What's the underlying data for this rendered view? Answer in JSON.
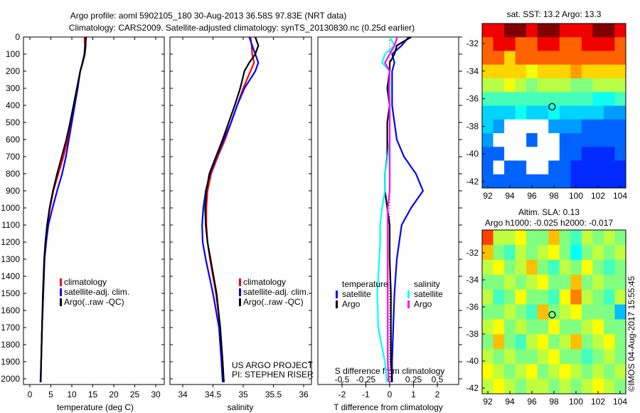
{
  "chart_data": [
    {
      "type": "line",
      "title": "Argo profile: aoml 5902105_180 30-Aug-2013 36.58S 97.83E (NRT data)",
      "subtitle": "Climatology: CARS2009. Satellite-adjusted climatology: synTS_20130830.nc (0.25d earlier)",
      "xlabel": "temperature (deg C)",
      "xlim": [
        -1,
        31
      ],
      "ylim": [
        0,
        2050
      ],
      "xticks": [
        "0",
        "5",
        "10",
        "15",
        "20",
        "25",
        "30"
      ],
      "yticks": [
        "0",
        "100",
        "200",
        "300",
        "400",
        "500",
        "600",
        "700",
        "800",
        "900",
        "1000",
        "1100",
        "1200",
        "1300",
        "1400",
        "1500",
        "1600",
        "1700",
        "1800",
        "1900",
        "2000"
      ],
      "depth": [
        0,
        50,
        100,
        150,
        200,
        300,
        400,
        500,
        600,
        700,
        800,
        900,
        1000,
        1100,
        1200,
        1300,
        1500,
        1700,
        1900,
        2020
      ],
      "series": [
        {
          "name": "climatology",
          "color": "#ff0000",
          "values": [
            13.0,
            13.1,
            13.0,
            12.5,
            12.0,
            11.3,
            10.5,
            9.8,
            9.0,
            8.0,
            6.8,
            5.6,
            4.8,
            4.2,
            3.8,
            3.5,
            3.2,
            2.9,
            2.7,
            2.6
          ]
        },
        {
          "name": "satellite-adj. clim.",
          "color": "#0000ff",
          "values": [
            13.3,
            13.3,
            13.1,
            12.6,
            12.0,
            11.4,
            10.7,
            10.0,
            9.3,
            8.6,
            7.7,
            6.5,
            5.4,
            4.4,
            3.9,
            3.5,
            3.2,
            2.9,
            2.7,
            2.5
          ]
        },
        {
          "name": "Argo(..raw -QC)",
          "color": "#000000",
          "values": [
            13.4,
            13.2,
            13.0,
            12.6,
            12.0,
            11.2,
            10.4,
            9.6,
            8.7,
            7.6,
            6.5,
            5.5,
            4.7,
            4.1,
            3.7,
            3.4,
            3.1,
            2.9,
            2.7,
            2.6
          ]
        }
      ]
    },
    {
      "type": "line",
      "xlabel": "salinity",
      "xlim": [
        33.8,
        36.1
      ],
      "ylim": [
        0,
        2050
      ],
      "xticks": [
        "34",
        "34.5",
        "35",
        "35.5",
        "36"
      ],
      "depth": [
        0,
        50,
        100,
        150,
        200,
        300,
        400,
        500,
        600,
        700,
        800,
        900,
        1000,
        1100,
        1200,
        1300,
        1500,
        1700,
        1900,
        2020
      ],
      "series": [
        {
          "name": "climatology",
          "color": "#ff0000",
          "values": [
            35.12,
            35.14,
            35.15,
            35.18,
            35.12,
            35.0,
            34.9,
            34.8,
            34.7,
            34.58,
            34.47,
            34.41,
            34.39,
            34.39,
            34.41,
            34.45,
            34.55,
            34.62,
            34.66,
            34.68
          ]
        },
        {
          "name": "satellite-adj. clim.",
          "color": "#0000ff",
          "values": [
            35.1,
            35.15,
            35.2,
            35.25,
            35.2,
            35.02,
            34.9,
            34.8,
            34.68,
            34.56,
            34.45,
            34.38,
            34.34,
            34.32,
            34.33,
            34.38,
            34.5,
            34.6,
            34.64,
            34.66
          ]
        },
        {
          "name": "Argo(..raw -QC)",
          "color": "#000000",
          "values": [
            35.2,
            35.25,
            35.2,
            35.1,
            35.02,
            34.95,
            34.86,
            34.76,
            34.66,
            34.55,
            34.44,
            34.39,
            34.37,
            34.38,
            34.41,
            34.46,
            34.56,
            34.62,
            34.66,
            34.68
          ]
        }
      ],
      "annotation": [
        "US ARGO PROJECT",
        "PI: STEPHEN RISER"
      ]
    },
    {
      "type": "line",
      "xlabel": "T difference from climatology",
      "x2label": "S difference from climatology",
      "xlim": [
        -3,
        3
      ],
      "x2lim": [
        -0.75,
        0.75
      ],
      "xticks": [
        "-2",
        "-1",
        "0",
        "1",
        "2"
      ],
      "x2ticks": [
        "-0.5",
        "-0.25",
        "0",
        "0.25",
        "0.5"
      ],
      "depth": [
        0,
        50,
        100,
        150,
        200,
        300,
        400,
        500,
        600,
        700,
        800,
        900,
        1000,
        1100,
        1200,
        1300,
        1500,
        1700,
        1900,
        2020
      ],
      "legend": {
        "temperature_title": "temperature",
        "salinity_title": "salinity"
      },
      "series": [
        {
          "name": "satellite",
          "group": "temperature",
          "axis": "T",
          "color": "#0000ff",
          "values": [
            0.8,
            0.5,
            0.1,
            0.2,
            0.1,
            0.1,
            0.1,
            0.2,
            0.3,
            0.6,
            1.1,
            1.4,
            0.9,
            0.5,
            0.4,
            0.3,
            0.2,
            0.15,
            0.1,
            0.1
          ]
        },
        {
          "name": "Argo",
          "group": "temperature",
          "axis": "T",
          "color": "#000000",
          "values": [
            0.9,
            0.3,
            0.2,
            0.0,
            0.0,
            -0.1,
            0.0,
            -0.1,
            -0.1,
            -0.1,
            -0.2,
            -0.2,
            -0.1,
            0.0,
            0.0,
            0.0,
            0.05,
            0.05,
            0.05,
            0.1
          ]
        },
        {
          "name": "satellite",
          "group": "salinity",
          "axis": "S",
          "color": "#00ffff",
          "values": [
            0.0,
            0.05,
            -0.05,
            -0.08,
            0.0,
            0.0,
            0.0,
            0.0,
            0.0,
            -0.02,
            -0.05,
            -0.05,
            -0.08,
            -0.1,
            -0.1,
            -0.11,
            -0.13,
            -0.12,
            -0.05,
            -0.03
          ]
        },
        {
          "name": "Argo",
          "group": "salinity",
          "axis": "S",
          "color": "#ff00ff",
          "values": [
            0.08,
            0.05,
            0.0,
            -0.05,
            0.0,
            -0.01,
            0.0,
            0.0,
            0.0,
            0.0,
            0.0,
            0.0,
            -0.02,
            -0.02,
            -0.02,
            -0.02,
            -0.02,
            -0.02,
            -0.02,
            -0.01
          ]
        }
      ]
    },
    {
      "type": "heatmap",
      "title": "sat. SST: 13.2 Argo: 13.3",
      "xticks": [
        "92",
        "94",
        "96",
        "98",
        "100",
        "102",
        "104"
      ],
      "yticks": [
        "-32",
        "-34",
        "-36",
        "-38",
        "-40",
        "-42"
      ],
      "xlim": [
        91.5,
        104.5
      ],
      "ylim": [
        -43,
        -30.9
      ],
      "point": [
        97.83,
        -36.58
      ],
      "clim": [
        9,
        18
      ],
      "grid": [
        [
          17,
          17,
          18,
          18,
          17,
          18,
          18,
          17,
          17,
          17,
          18,
          18,
          17
        ],
        [
          16,
          17,
          17,
          16,
          16,
          17,
          17,
          16,
          16,
          17,
          17,
          17,
          16
        ],
        [
          16,
          16,
          15,
          16,
          16,
          16,
          16,
          16,
          16,
          16,
          16,
          16,
          16
        ],
        [
          15,
          15,
          15,
          15,
          14.5,
          15,
          15,
          15,
          15.5,
          15,
          15,
          15,
          15
        ],
        [
          14,
          14,
          14.5,
          14,
          13.5,
          14,
          14,
          14,
          13.5,
          13.5,
          14,
          14,
          14
        ],
        [
          13,
          13,
          13,
          13,
          13,
          13,
          13,
          13,
          13,
          13,
          12.5,
          12.5,
          13
        ],
        [
          12,
          12,
          12,
          12.5,
          12,
          12,
          12.5,
          12,
          12,
          12,
          12,
          11.5,
          11.5
        ],
        [
          12,
          11.5,
          null,
          null,
          null,
          null,
          11.5,
          11.5,
          11.5,
          11,
          11,
          11,
          11
        ],
        [
          11.5,
          null,
          null,
          null,
          11,
          null,
          null,
          11,
          11,
          11,
          11,
          11,
          11
        ],
        [
          11,
          11,
          null,
          null,
          null,
          null,
          null,
          11,
          11,
          10.5,
          10.5,
          10.5,
          11
        ],
        [
          11,
          null,
          11,
          11,
          null,
          null,
          11,
          11,
          10.5,
          10.5,
          10.5,
          10.5,
          10.5
        ],
        [
          11,
          11,
          11,
          11,
          11,
          11,
          11,
          11,
          10.5,
          10.5,
          10.5,
          10.5,
          10.5
        ]
      ]
    },
    {
      "type": "heatmap",
      "title": "Altim. SLA: 0.13",
      "subtitle": "Argo h1000: -0.025 h2000: -0.017",
      "xticks": [
        "92",
        "94",
        "96",
        "98",
        "100",
        "102",
        "104"
      ],
      "yticks": [
        "-32",
        "-34",
        "-36",
        "-38",
        "-40",
        "-42"
      ],
      "xlim": [
        91.5,
        104.5
      ],
      "ylim": [
        -43,
        -30.9
      ],
      "point": [
        97.83,
        -36.58
      ],
      "clim": [
        -0.4,
        0.4
      ],
      "grid": [
        [
          0.25,
          0.05,
          0.05,
          0.1,
          0.0,
          0.0,
          0.15,
          0.0,
          -0.05,
          0.05,
          0.0,
          0.05,
          0.0
        ],
        [
          0.15,
          0.0,
          -0.05,
          0.05,
          0.0,
          0.05,
          0.1,
          0.0,
          -0.1,
          0.0,
          0.05,
          0.0,
          0.05
        ],
        [
          0.05,
          0.1,
          0.0,
          0.05,
          0.15,
          0.0,
          -0.05,
          0.05,
          0.0,
          0.1,
          0.0,
          -0.05,
          0.0
        ],
        [
          0.0,
          0.0,
          0.05,
          0.0,
          0.05,
          0.1,
          0.0,
          0.0,
          0.15,
          0.0,
          0.05,
          0.0,
          0.0
        ],
        [
          0.05,
          -0.05,
          0.0,
          0.1,
          0.0,
          0.0,
          -0.05,
          0.1,
          0.2,
          0.05,
          0.0,
          -0.05,
          0.05
        ],
        [
          0.0,
          0.0,
          0.05,
          0.0,
          -0.05,
          0.15,
          0.0,
          0.05,
          0.1,
          0.0,
          0.0,
          0.0,
          -0.15
        ],
        [
          0.05,
          0.1,
          0.0,
          0.05,
          0.0,
          0.0,
          0.1,
          0.0,
          0.0,
          0.05,
          0.1,
          0.0,
          0.0
        ],
        [
          0.0,
          0.15,
          0.0,
          -0.05,
          0.05,
          0.1,
          0.0,
          0.05,
          0.15,
          0.0,
          0.05,
          0.1,
          0.0
        ],
        [
          0.05,
          0.0,
          0.05,
          0.0,
          0.0,
          0.05,
          0.1,
          0.0,
          0.0,
          -0.05,
          0.0,
          0.05,
          0.0
        ],
        [
          0.1,
          0.05,
          0.0,
          0.05,
          0.1,
          0.0,
          0.05,
          0.1,
          0.05,
          0.0,
          0.05,
          0.0,
          0.05
        ],
        [
          0.05,
          0.1,
          0.05,
          0.0,
          0.05,
          0.05,
          0.0,
          0.05,
          0.0,
          0.05,
          0.1,
          0.05,
          0.0
        ]
      ]
    }
  ],
  "credit": "©IMOS 04-Aug-2017 15:55:45"
}
